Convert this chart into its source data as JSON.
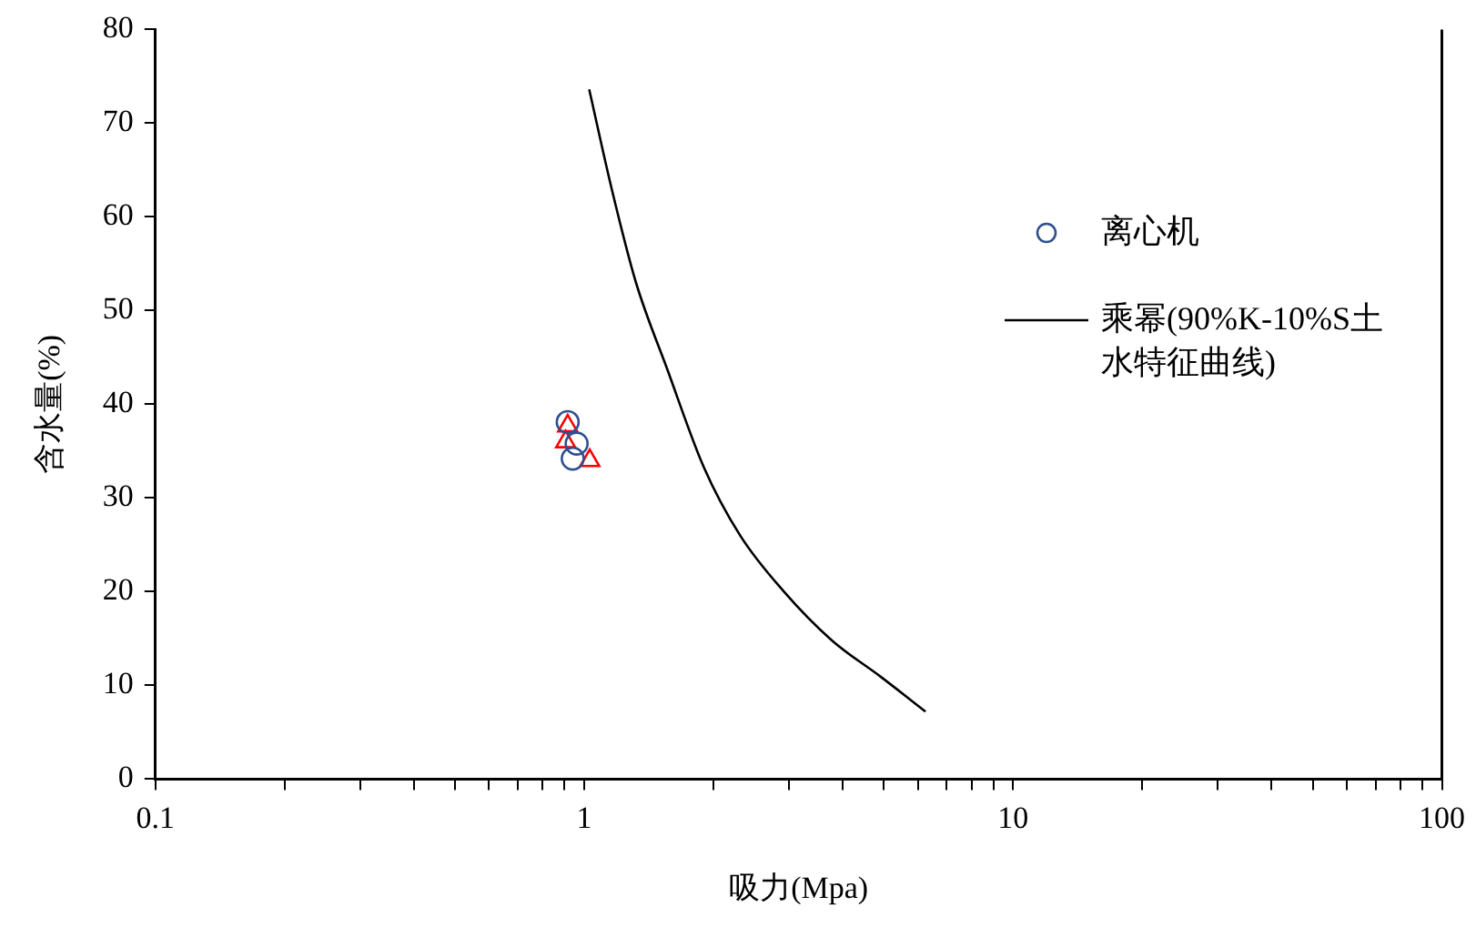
{
  "chart_data": {
    "type": "scatter",
    "xlabel": "吸力(Mpa)",
    "ylabel": "含水量(%)",
    "log": "x",
    "grid": false,
    "legend": "right",
    "xlim": [
      0.1,
      100
    ],
    "ylim": [
      0,
      80
    ],
    "xticks": [
      0.1,
      {
        "value": 0.2,
        "label": null
      },
      {
        "value": 0.3,
        "label": null
      },
      {
        "value": 0.4,
        "label": null
      },
      {
        "value": 0.5,
        "label": null
      },
      {
        "value": 0.6,
        "label": null
      },
      {
        "value": 0.7,
        "label": null
      },
      {
        "value": 0.8,
        "label": null
      },
      {
        "value": 0.9,
        "label": null
      },
      1,
      {
        "value": 2,
        "label": null
      },
      {
        "value": 3,
        "label": null
      },
      {
        "value": 4,
        "label": null
      },
      {
        "value": 5,
        "label": null
      },
      {
        "value": 6,
        "label": null
      },
      {
        "value": 7,
        "label": null
      },
      {
        "value": 8,
        "label": null
      },
      {
        "value": 9,
        "label": null
      },
      10,
      {
        "value": 20,
        "label": null
      },
      {
        "value": 30,
        "label": null
      },
      {
        "value": 40,
        "label": null
      },
      {
        "value": 50,
        "label": null
      },
      {
        "value": 60,
        "label": null
      },
      {
        "value": 70,
        "label": null
      },
      {
        "value": 80,
        "label": null
      },
      {
        "value": 90,
        "label": null
      },
      100
    ],
    "yticks": [
      0,
      10,
      20,
      30,
      40,
      50,
      60,
      70,
      80
    ],
    "series": [
      {
        "name": "离心机",
        "marker": "circle",
        "color": "#2f4f8f",
        "x": [
          0.915,
          0.96,
          0.94
        ],
        "values": [
          38.1,
          35.8,
          34.2
        ]
      },
      {
        "marker": "triangle",
        "color": "#ff0000",
        "x": [
          0.915,
          0.905,
          1.03
        ],
        "values": [
          37.7,
          36.0,
          34.0
        ]
      },
      {
        "name": "乘幂(90%K-10%S土水特征曲线)",
        "type": "line",
        "marker": "none",
        "line_style": "solid",
        "color": "#000000",
        "x": [
          1.027,
          1.16,
          1.32,
          1.56,
          1.9,
          2.31,
          2.91,
          3.78,
          4.92,
          6.25
        ],
        "values": [
          73.6,
          62.9,
          53.0,
          43.8,
          33.3,
          26.0,
          20.1,
          14.8,
          10.9,
          7.2
        ]
      }
    ]
  }
}
